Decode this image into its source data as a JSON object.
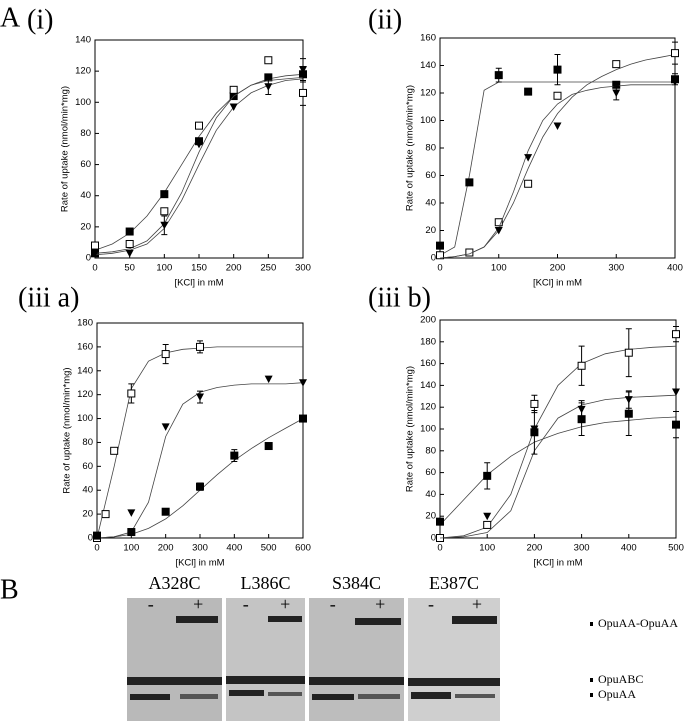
{
  "panel_a_label": "A",
  "chart_data": [
    {
      "type": "scatter",
      "panel": "(i)",
      "xlabel": "[KCl] in mM",
      "ylabel": "Rate of uptake (nmol/min*mg)",
      "xlim": [
        0,
        300
      ],
      "ylim": [
        0,
        140
      ],
      "xticks": [
        0,
        50,
        100,
        150,
        200,
        250,
        300
      ],
      "yticks": [
        0,
        20,
        40,
        60,
        80,
        100,
        120,
        140
      ],
      "fit_x": [
        0,
        25,
        50,
        75,
        100,
        125,
        150,
        175,
        200,
        225,
        250,
        275,
        300
      ],
      "series": [
        {
          "marker": "square-filled",
          "color": "#000000",
          "x": [
            0,
            50,
            100,
            150,
            200,
            250,
            300
          ],
          "values": [
            3,
            17,
            41,
            75,
            104,
            116,
            118
          ],
          "errors": [
            null,
            null,
            null,
            null,
            null,
            null,
            5
          ],
          "fit": [
            5,
            9,
            16,
            27,
            42,
            60,
            78,
            93,
            104,
            111,
            115,
            117,
            118
          ]
        },
        {
          "marker": "square-open",
          "color": "#000000",
          "x": [
            0,
            50,
            100,
            150,
            200,
            250,
            300
          ],
          "values": [
            8,
            9,
            30,
            85,
            108,
            127,
            106
          ],
          "errors": [
            null,
            null,
            null,
            null,
            null,
            null,
            8
          ],
          "fit": [
            3,
            4,
            6,
            11,
            22,
            42,
            68,
            90,
            104,
            111,
            114,
            115,
            116
          ]
        },
        {
          "marker": "triangle-filled",
          "color": "#000000",
          "x": [
            0,
            50,
            100,
            150,
            200,
            250,
            300
          ],
          "values": [
            3,
            3,
            21,
            73,
            97,
            110,
            121
          ],
          "errors": [
            null,
            null,
            6,
            null,
            null,
            5,
            7
          ],
          "fit": [
            2,
            3,
            5,
            9,
            19,
            37,
            60,
            82,
            97,
            106,
            111,
            114,
            115
          ]
        }
      ]
    },
    {
      "type": "scatter",
      "panel": "(ii)",
      "xlabel": "[KCl] in mM",
      "ylabel": "Rate of uptake (nmol/min*mg)",
      "xlim": [
        0,
        400
      ],
      "ylim": [
        0,
        160
      ],
      "xticks": [
        0,
        100,
        200,
        300,
        400
      ],
      "yticks": [
        0,
        20,
        40,
        60,
        80,
        100,
        120,
        140,
        160
      ],
      "fit_x": [
        0,
        25,
        50,
        75,
        100,
        125,
        150,
        175,
        200,
        225,
        250,
        275,
        300,
        325,
        350,
        375,
        400
      ],
      "series": [
        {
          "marker": "square-filled",
          "color": "#000000",
          "x": [
            0,
            50,
            100,
            150,
            200,
            300,
            400
          ],
          "values": [
            9,
            55,
            133,
            121,
            137,
            126,
            130
          ],
          "errors": [
            null,
            null,
            5,
            null,
            11,
            null,
            4
          ],
          "fit": [
            2,
            8,
            60,
            122,
            128,
            128,
            128,
            128,
            128,
            128,
            128,
            128,
            128,
            128,
            128,
            128,
            128
          ]
        },
        {
          "marker": "square-open",
          "color": "#000000",
          "x": [
            0,
            50,
            100,
            150,
            200,
            300,
            400
          ],
          "values": [
            2,
            4,
            26,
            54,
            118,
            141,
            149
          ],
          "errors": [
            null,
            null,
            null,
            null,
            null,
            null,
            8
          ],
          "fit": [
            0,
            1,
            3,
            8,
            20,
            40,
            65,
            88,
            105,
            117,
            126,
            132,
            137,
            141,
            144,
            146,
            148
          ]
        },
        {
          "marker": "triangle-filled",
          "color": "#000000",
          "x": [
            100,
            150,
            200,
            300,
            400
          ],
          "values": [
            20,
            73,
            96,
            120,
            128
          ],
          "errors": [
            null,
            null,
            null,
            5,
            null
          ],
          "fit": [
            0,
            1,
            3,
            8,
            22,
            48,
            78,
            100,
            112,
            119,
            122,
            124,
            125,
            126,
            126,
            126,
            126
          ]
        }
      ]
    },
    {
      "type": "scatter",
      "panel": "(iii a)",
      "xlabel": "[KCl] in mM",
      "ylabel": "Rate of uptake (nmol/min*mg)",
      "xlim": [
        0,
        600
      ],
      "ylim": [
        0,
        180
      ],
      "xticks": [
        0,
        100,
        200,
        300,
        400,
        500,
        600
      ],
      "yticks": [
        0,
        20,
        40,
        60,
        80,
        100,
        120,
        140,
        160,
        180
      ],
      "fit_x": [
        0,
        50,
        100,
        150,
        200,
        250,
        300,
        350,
        400,
        450,
        500,
        550,
        600
      ],
      "series": [
        {
          "marker": "square-open",
          "color": "#000000",
          "x": [
            0,
            25,
            50,
            100,
            200,
            300
          ],
          "values": [
            0,
            20,
            73,
            121,
            154,
            160
          ],
          "errors": [
            null,
            null,
            null,
            8,
            8,
            5
          ],
          "fit": [
            0,
            60,
            125,
            148,
            155,
            158,
            159,
            160,
            160,
            160,
            160,
            160,
            160
          ]
        },
        {
          "marker": "triangle-filled",
          "color": "#000000",
          "x": [
            100,
            200,
            300,
            500,
            600
          ],
          "values": [
            21,
            93,
            118,
            133,
            130
          ],
          "errors": [
            null,
            null,
            5,
            null,
            null
          ],
          "fit": [
            0,
            1,
            5,
            30,
            85,
            112,
            122,
            126,
            128,
            129,
            129,
            129,
            130
          ]
        },
        {
          "marker": "square-filled",
          "color": "#000000",
          "x": [
            0,
            100,
            200,
            300,
            400,
            500,
            600
          ],
          "values": [
            2,
            5,
            22,
            43,
            69,
            77,
            100
          ],
          "errors": [
            null,
            null,
            null,
            3,
            5,
            null,
            null
          ],
          "fit": [
            0,
            1,
            3,
            8,
            16,
            27,
            40,
            53,
            65,
            75,
            84,
            92,
            100
          ]
        }
      ]
    },
    {
      "type": "scatter",
      "panel": "(iii b)",
      "xlabel": "[KCl] in mM",
      "ylabel": "Rate of uptake (nmol/min*mg)",
      "xlim": [
        0,
        500
      ],
      "ylim": [
        0,
        200
      ],
      "xticks": [
        0,
        100,
        200,
        300,
        400,
        500
      ],
      "yticks": [
        0,
        20,
        40,
        60,
        80,
        100,
        120,
        140,
        160,
        180,
        200
      ],
      "fit_x": [
        0,
        50,
        100,
        150,
        200,
        250,
        300,
        350,
        400,
        450,
        500
      ],
      "series": [
        {
          "marker": "square-open",
          "color": "#000000",
          "x": [
            0,
            100,
            200,
            300,
            400,
            500
          ],
          "values": [
            0,
            12,
            123,
            158,
            170,
            187
          ],
          "errors": [
            null,
            null,
            8,
            18,
            22,
            7
          ],
          "fit": [
            0,
            2,
            10,
            40,
            100,
            140,
            160,
            169,
            173,
            175,
            176
          ]
        },
        {
          "marker": "triangle-filled",
          "color": "#000000",
          "x": [
            100,
            200,
            300,
            400,
            500
          ],
          "values": [
            20,
            100,
            118,
            127,
            134
          ],
          "errors": [
            null,
            null,
            8,
            8,
            null
          ],
          "fit": [
            0,
            1,
            5,
            25,
            80,
            110,
            122,
            127,
            129,
            130,
            131
          ]
        },
        {
          "marker": "square-filled",
          "color": "#000000",
          "x": [
            0,
            100,
            200,
            300,
            400,
            500
          ],
          "values": [
            15,
            57,
            97,
            109,
            114,
            104
          ],
          "errors": [
            null,
            12,
            20,
            15,
            20,
            12
          ],
          "fit": [
            12,
            35,
            58,
            75,
            88,
            96,
            102,
            106,
            108,
            110,
            111
          ]
        }
      ]
    }
  ],
  "gel": {
    "label": "B",
    "lanes": [
      {
        "name": "A328C",
        "minus": "-",
        "plus": "+"
      },
      {
        "name": "L386C",
        "minus": "-",
        "plus": "+"
      },
      {
        "name": "S384C",
        "minus": "-",
        "plus": "+"
      },
      {
        "name": "E387C",
        "minus": "-",
        "plus": "+"
      }
    ],
    "bands": [
      "OpuAA-OpuAA",
      "OpuABC",
      "OpuAA"
    ]
  }
}
